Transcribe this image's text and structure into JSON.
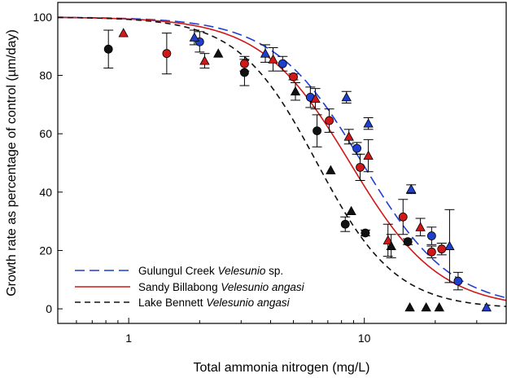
{
  "chart_data": {
    "type": "scatter",
    "xlabel": "Total ammonia nitrogen (mg/L)",
    "ylabel_prefix": "Growth rate as percentage of control (",
    "ylabel_mu": "µ",
    "ylabel_suffix": "m/day)",
    "x_scale": "log",
    "xlim": [
      0.5,
      40
    ],
    "ylim": [
      -5,
      105
    ],
    "xticks": [
      1,
      10
    ],
    "yticks": [
      0,
      20,
      40,
      60,
      80,
      100
    ],
    "grid": false,
    "legend_position": "bottom-left",
    "series": [
      {
        "key": "gulungul",
        "legend_plain": "Gulungul Creek ",
        "legend_italic": "Velesunio",
        "legend_tail": " sp.",
        "color": "#1f3fcf",
        "line_dash": "12 6",
        "curve": {
          "ec50": 9.8,
          "slope": 2.3
        },
        "circles": [
          {
            "x": 2.0,
            "y": 91.5,
            "err": 3.5
          },
          {
            "x": 4.5,
            "y": 84,
            "err": 2.5
          },
          {
            "x": 5.9,
            "y": 72.5,
            "err": 3.5
          },
          {
            "x": 9.3,
            "y": 55,
            "err": 2
          },
          {
            "x": 19.3,
            "y": 25,
            "err": 3
          },
          {
            "x": 25,
            "y": 9.5,
            "err": 3
          }
        ],
        "triangles": [
          {
            "x": 1.9,
            "y": 93,
            "err": 2.5
          },
          {
            "x": 3.8,
            "y": 87.5,
            "err": 3
          },
          {
            "x": 8.4,
            "y": 72.5,
            "err": 2
          },
          {
            "x": 10.4,
            "y": 63.5,
            "err": 2
          },
          {
            "x": 15.8,
            "y": 41,
            "err": 1.5
          },
          {
            "x": 23,
            "y": 21.5,
            "err": 12.5
          },
          {
            "x": 33,
            "y": 0.5,
            "err": 0
          }
        ]
      },
      {
        "key": "sandy",
        "legend_plain": "Sandy Billabong ",
        "legend_italic": "Velesunio angasi",
        "legend_tail": "",
        "color": "#d01818",
        "line_dash": "",
        "curve": {
          "ec50": 8.7,
          "slope": 2.3
        },
        "circles": [
          {
            "x": 1.45,
            "y": 87.5,
            "err": 7
          },
          {
            "x": 3.1,
            "y": 84,
            "err": 2.5
          },
          {
            "x": 5.0,
            "y": 79.5,
            "err": 1
          },
          {
            "x": 7.1,
            "y": 64.5,
            "err": 4
          },
          {
            "x": 9.6,
            "y": 48.5,
            "err": 4.5
          },
          {
            "x": 14.6,
            "y": 31.5,
            "err": 6
          },
          {
            "x": 19.3,
            "y": 19.5,
            "err": 2
          },
          {
            "x": 21.3,
            "y": 20.5,
            "err": 2
          }
        ],
        "triangles": [
          {
            "x": 0.95,
            "y": 94.5,
            "err": 0
          },
          {
            "x": 2.1,
            "y": 85,
            "err": 2.5
          },
          {
            "x": 4.1,
            "y": 85.5,
            "err": 4
          },
          {
            "x": 6.2,
            "y": 72,
            "err": 3.5
          },
          {
            "x": 8.6,
            "y": 59,
            "err": 2.5
          },
          {
            "x": 10.4,
            "y": 52.5,
            "err": 5.5
          },
          {
            "x": 12.6,
            "y": 23.5,
            "err": 5.5
          },
          {
            "x": 17.3,
            "y": 28,
            "err": 3
          }
        ]
      },
      {
        "key": "bennett",
        "legend_plain": "Lake Bennett ",
        "legend_italic": "Velesunio angasi",
        "legend_tail": "",
        "color": "#111111",
        "line_dash": "7 5",
        "curve": {
          "ec50": 6.3,
          "slope": 2.6
        },
        "circles": [
          {
            "x": 0.82,
            "y": 89,
            "err": 6.5
          },
          {
            "x": 3.1,
            "y": 81,
            "err": 4.5
          },
          {
            "x": 6.3,
            "y": 61,
            "err": 5.5
          },
          {
            "x": 8.3,
            "y": 29,
            "err": 2.5
          },
          {
            "x": 10.1,
            "y": 26,
            "err": 1
          },
          {
            "x": 15.3,
            "y": 23,
            "err": 1
          }
        ],
        "triangles": [
          {
            "x": 2.4,
            "y": 87.5,
            "err": 0
          },
          {
            "x": 5.1,
            "y": 74.5,
            "err": 3
          },
          {
            "x": 7.2,
            "y": 47.5,
            "err": 0
          },
          {
            "x": 8.8,
            "y": 33.5,
            "err": 0
          },
          {
            "x": 13.0,
            "y": 21.5,
            "err": 4
          },
          {
            "x": 15.6,
            "y": 0.5,
            "err": 0
          },
          {
            "x": 18.3,
            "y": 0.5,
            "err": 0
          },
          {
            "x": 20.8,
            "y": 0.5,
            "err": 0
          }
        ]
      }
    ]
  }
}
